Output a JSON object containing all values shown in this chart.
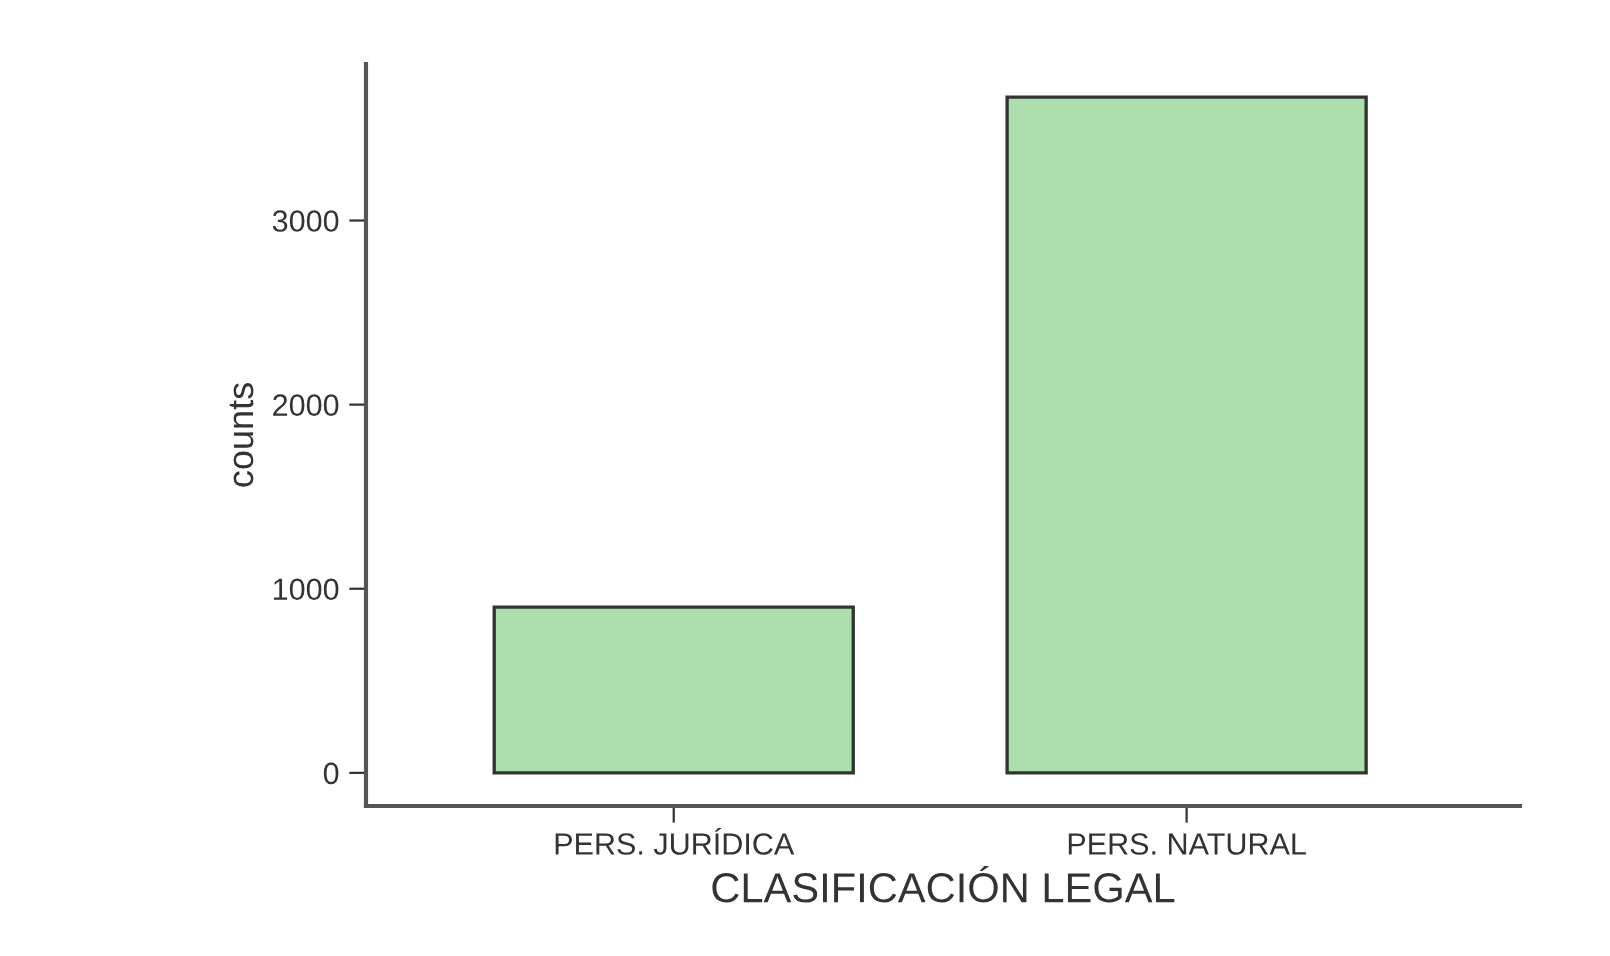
{
  "chart_data": {
    "type": "bar",
    "xlabel": "CLASIFICACIÓN LEGAL",
    "ylabel": "counts",
    "categories": [
      "PERS. JURÍDICA",
      "PERS. NATURAL"
    ],
    "values": [
      900,
      3670
    ],
    "color": "#addfad",
    "ylim": [
      -180,
      3850
    ],
    "yticks": [
      0,
      1000,
      2000,
      3000
    ],
    "grid": false,
    "legend": false
  }
}
